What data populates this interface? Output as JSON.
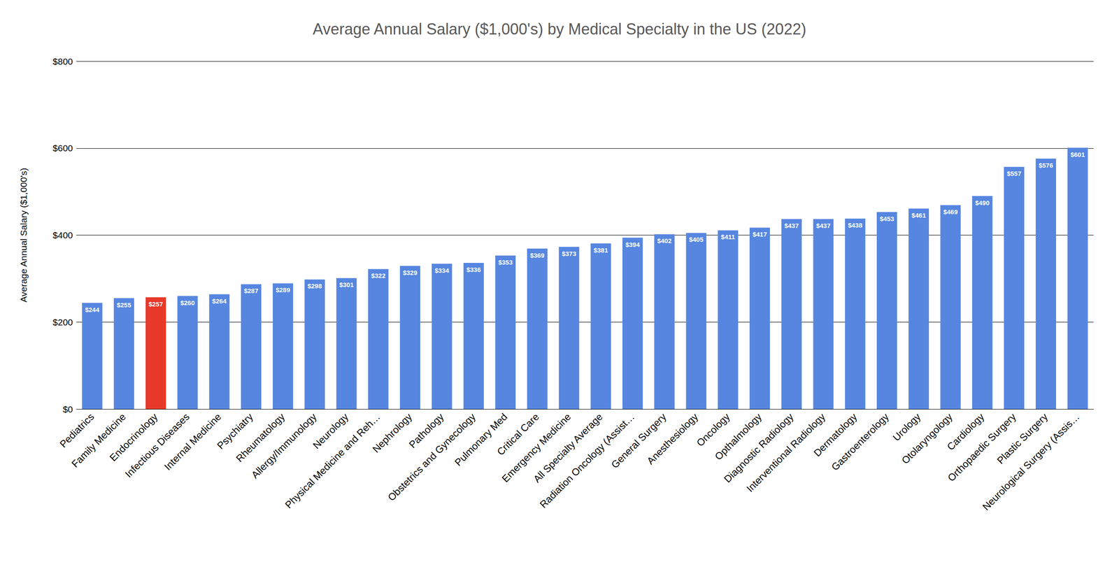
{
  "chart_data": {
    "type": "bar",
    "title": "Average Annual Salary ($1,000's) by Medical Specialty in the US (2022)",
    "y_label": "Average Annual Salary ($1,000's)",
    "categories": [
      "Pediatrics",
      "Family Medicine",
      "Endocrinology",
      "Infectious Diseases",
      "Internal Medicine",
      "Psychiatry",
      "Rheumatology",
      "Allergy/Immunology",
      "Neurology",
      "Physical Medicine and Reh…",
      "Nephrology",
      "Pathology",
      "Obstetrics and Gynecology",
      "Pulmonary Med",
      "Critical Care",
      "Emergency Medicine",
      "All Specialty Average",
      "Radiation Oncology (Assist…",
      "General Surgery",
      "Anesthesiology",
      "Oncology",
      "Opthalmology",
      "Diagnostic Radiology",
      "Interventional Radiology",
      "Dermatology",
      "Gastroenterology",
      "Urology",
      "Otolaryngology",
      "Cardiology",
      "Orthopaedic Surgery",
      "Plastic Surgery",
      "Neurological Surgery (Assis…"
    ],
    "values": [
      244,
      255,
      257,
      260,
      264,
      287,
      289,
      298,
      301,
      322,
      329,
      334,
      336,
      353,
      369,
      373,
      381,
      394,
      402,
      405,
      411,
      417,
      437,
      437,
      438,
      453,
      461,
      469,
      490,
      557,
      576,
      601
    ],
    "value_labels": [
      "$244",
      "$255",
      "$257",
      "$260",
      "$264",
      "$287",
      "$289",
      "$298",
      "$301",
      "$322",
      "$329",
      "$334",
      "$336",
      "$353",
      "$369",
      "$373",
      "$381",
      "$394",
      "$402",
      "$405",
      "$411",
      "$417",
      "$437",
      "$437",
      "$438",
      "$453",
      "$461",
      "$469",
      "$490",
      "$557",
      "$576",
      "$601"
    ],
    "colors": [
      "#5686e0",
      "#5686e0",
      "#e8392a",
      "#5686e0",
      "#5686e0",
      "#5686e0",
      "#5686e0",
      "#5686e0",
      "#5686e0",
      "#5686e0",
      "#5686e0",
      "#5686e0",
      "#5686e0",
      "#5686e0",
      "#5686e0",
      "#5686e0",
      "#5686e0",
      "#5686e0",
      "#5686e0",
      "#5686e0",
      "#5686e0",
      "#5686e0",
      "#5686e0",
      "#5686e0",
      "#5686e0",
      "#5686e0",
      "#5686e0",
      "#5686e0",
      "#5686e0",
      "#5686e0",
      "#5686e0",
      "#5686e0"
    ],
    "ylim": [
      0,
      800
    ],
    "yticks": [
      {
        "value": 0,
        "label": "$0"
      },
      {
        "value": 200,
        "label": "$200"
      },
      {
        "value": 400,
        "label": "$400"
      },
      {
        "value": 600,
        "label": "$600"
      },
      {
        "value": 800,
        "label": "$800"
      }
    ],
    "grid": true,
    "data_labels": true
  }
}
